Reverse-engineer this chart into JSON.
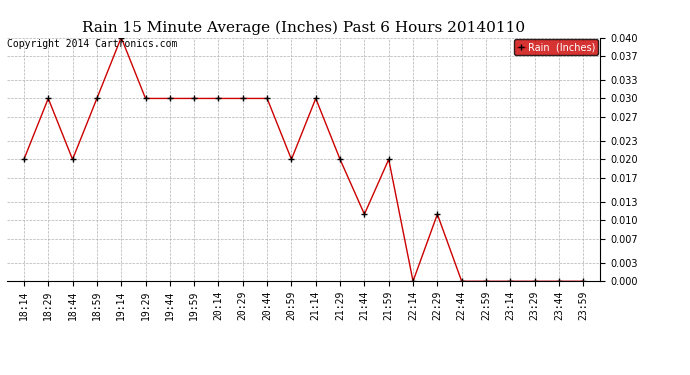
{
  "title": "Rain 15 Minute Average (Inches) Past 6 Hours 20140110",
  "copyright": "Copyright 2014 Cartronics.com",
  "legend_label": "Rain  (Inches)",
  "x_labels": [
    "18:14",
    "18:29",
    "18:44",
    "18:59",
    "19:14",
    "19:29",
    "19:44",
    "19:59",
    "20:14",
    "20:29",
    "20:44",
    "20:59",
    "21:14",
    "21:29",
    "21:44",
    "21:59",
    "22:14",
    "22:29",
    "22:44",
    "22:59",
    "23:14",
    "23:29",
    "23:44",
    "23:59"
  ],
  "y_values": [
    0.02,
    0.03,
    0.02,
    0.03,
    0.04,
    0.03,
    0.03,
    0.03,
    0.03,
    0.03,
    0.03,
    0.02,
    0.03,
    0.02,
    0.011,
    0.02,
    0.0,
    0.011,
    0.0,
    0.0,
    0.0,
    0.0,
    0.0,
    0.0
  ],
  "ylim": [
    0.0,
    0.04
  ],
  "yticks": [
    0.0,
    0.003,
    0.007,
    0.01,
    0.013,
    0.017,
    0.02,
    0.023,
    0.027,
    0.03,
    0.033,
    0.037,
    0.04
  ],
  "line_color": "#cc0000",
  "marker": "+",
  "marker_size": 5,
  "marker_color": "#000000",
  "bg_color": "#ffffff",
  "grid_color": "#aaaaaa",
  "title_fontsize": 11,
  "copyright_fontsize": 7,
  "tick_fontsize": 7,
  "ytick_fontsize": 7,
  "legend_bg": "#cc0000",
  "legend_text_color": "#ffffff"
}
